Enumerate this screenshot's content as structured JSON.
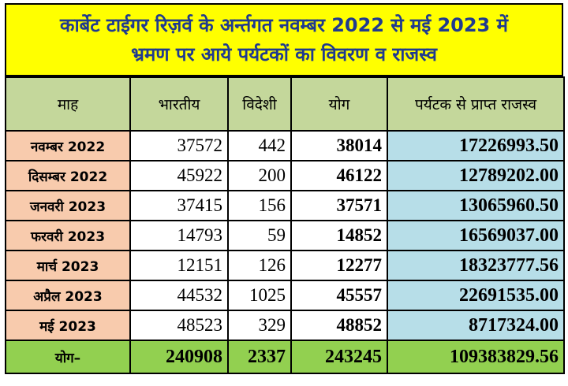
{
  "title_line1": "कार्बेट टाईगर रिज़र्व के अर्न्तगत नवम्बर 2022 से मई 2023 में",
  "title_line2": "भ्रमण पर आये पर्यटकों का विवरण व राजस्व",
  "headers": [
    "माह",
    "भारतीय",
    "विदेशी",
    "योग",
    "पर्यटक से प्राप्त राजस्व"
  ],
  "rows": [
    {
      "month": "नवम्बर 2022",
      "indian": "37572",
      "foreign": "442",
      "total": "38014",
      "revenue": "17226993.50"
    },
    {
      "month": "दिसम्बर 2022",
      "indian": "45922",
      "foreign": "200",
      "total": "46122",
      "revenue": "12789202.00"
    },
    {
      "month": "जनवरी 2023",
      "indian": "37415",
      "foreign": "156",
      "total": "37571",
      "revenue": "13065960.50"
    },
    {
      "month": "फरवरी 2023",
      "indian": "14793",
      "foreign": "59",
      "total": "14852",
      "revenue": "16569037.00"
    },
    {
      "month": "मार्च 2023",
      "indian": "12151",
      "foreign": "126",
      "total": "12277",
      "revenue": "18323777.56"
    },
    {
      "month": "अप्रैल 2023",
      "indian": "44532",
      "foreign": "1025",
      "total": "45557",
      "revenue": "22691535.00"
    },
    {
      "month": "मई 2023",
      "indian": "48523",
      "foreign": "329",
      "total": "48852",
      "revenue": "8717324.00"
    }
  ],
  "footer": {
    "label": "योग–",
    "indian": "240908",
    "foreign": "2337",
    "total": "243245",
    "revenue": "109383829.56"
  },
  "colors": {
    "title_bg": "#ffff00",
    "title_text": "#1f3a8f",
    "header_bg": "#c4d79b",
    "month_bg": "#f8cbad",
    "revenue_bg": "#b7dee8",
    "footer_bg": "#92d050"
  }
}
